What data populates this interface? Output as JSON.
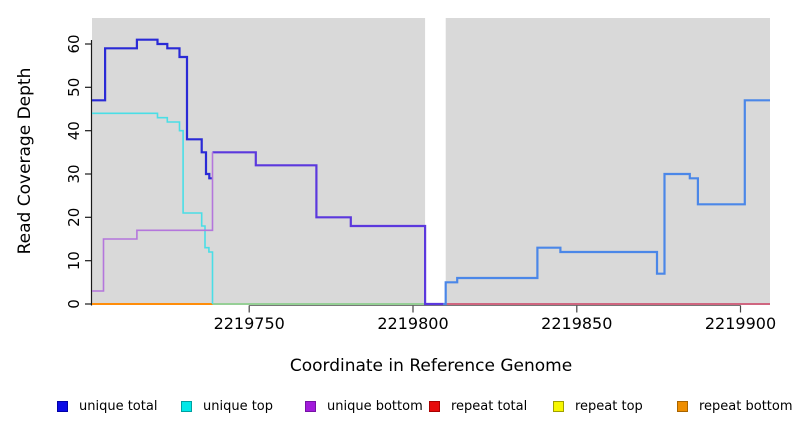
{
  "chart_data": {
    "type": "line",
    "title": "",
    "xlabel": "Coordinate in Reference Genome",
    "ylabel": "Read Coverage Depth",
    "xlim": [
      2219702,
      2219909
    ],
    "ylim": [
      0,
      66
    ],
    "x_ticks": [
      2219750,
      2219800,
      2219850,
      2219900
    ],
    "y_ticks": [
      0,
      10,
      20,
      30,
      40,
      50,
      60
    ],
    "grid": false,
    "plot_bg": "#D9D9D9",
    "gap_region": [
      2219803.7,
      2219810
    ],
    "legend_position": "bottom",
    "series": [
      {
        "key": "zero-blend-green",
        "name": "unique top / repeat top at zero",
        "color": "#80CC80",
        "width": 1.6,
        "steps": [
          [
            2219738.8,
            0
          ]
        ],
        "end": 2219803.7
      },
      {
        "key": "repeat-bottom-line",
        "name": "repeat bottom",
        "color": "#FF8D0A",
        "width": 2,
        "steps": [
          [
            2219702,
            0
          ]
        ],
        "end": 2219738.8
      },
      {
        "key": "repeat-total-line",
        "name": "repeat total",
        "color": "#CC4162",
        "width": 1.6,
        "steps": [
          [
            2219810,
            0
          ]
        ],
        "end": 2219909
      },
      {
        "key": "unique-total-mid",
        "name": "unique total = unique bottom (middle)",
        "color": "#5B38DD",
        "width": 2.2,
        "steps": [
          [
            2219738.8,
            35
          ],
          [
            2219752,
            32
          ],
          [
            2219770.5,
            20
          ],
          [
            2219781,
            18
          ],
          [
            2219803.7,
            0
          ]
        ],
        "end": 2219809.3
      },
      {
        "key": "unique-total-right",
        "name": "unique total (right)",
        "color": "#4B87E8",
        "width": 2.2,
        "steps": [
          [
            2219809.3,
            0
          ],
          [
            2219810,
            5
          ],
          [
            2219813.5,
            6
          ],
          [
            2219838,
            13
          ],
          [
            2219845,
            12
          ],
          [
            2219874.5,
            7
          ],
          [
            2219876.8,
            30
          ],
          [
            2219884.5,
            29
          ],
          [
            2219887,
            23
          ],
          [
            2219901.3,
            47
          ]
        ],
        "end": 2219909
      },
      {
        "key": "unique-total-left",
        "name": "unique total (left)",
        "color": "#2A2AD6",
        "width": 2.2,
        "steps": [
          [
            2219702,
            47
          ],
          [
            2219706,
            59
          ],
          [
            2219715.7,
            61
          ],
          [
            2219722,
            60
          ],
          [
            2219725,
            59
          ],
          [
            2219728.7,
            57
          ],
          [
            2219731,
            38
          ],
          [
            2219735.5,
            35
          ],
          [
            2219736.8,
            30
          ],
          [
            2219737.8,
            29
          ]
        ],
        "end": 2219738.8
      },
      {
        "key": "unique-top-line",
        "name": "unique top",
        "color": "#4ADEE6",
        "width": 1.6,
        "steps": [
          [
            2219702,
            44
          ],
          [
            2219722,
            43
          ],
          [
            2219725,
            42
          ],
          [
            2219728.7,
            40
          ],
          [
            2219729.8,
            21
          ],
          [
            2219735.5,
            18
          ],
          [
            2219736.5,
            13
          ],
          [
            2219737.7,
            12
          ],
          [
            2219738.8,
            0
          ]
        ],
        "end": 2219738.8
      },
      {
        "key": "unique-bottom-line",
        "name": "unique bottom",
        "color": "#B476DC",
        "width": 1.6,
        "steps": [
          [
            2219702,
            3
          ],
          [
            2219705.5,
            15
          ],
          [
            2219715.7,
            17
          ],
          [
            2219738.8,
            35
          ]
        ],
        "end": 2219738.8
      }
    ]
  },
  "legend": {
    "items": [
      {
        "key": "unique-total",
        "label": "unique total",
        "color": "#0B0BE6",
        "border": "#0000A8"
      },
      {
        "key": "unique-top",
        "label": "unique top",
        "color": "#00E8E8",
        "border": "#00A0A0"
      },
      {
        "key": "unique-bottom",
        "label": "unique bottom",
        "color": "#A21BDB",
        "border": "#7612A5"
      },
      {
        "key": "repeat-total",
        "label": "repeat total",
        "color": "#E60B0B",
        "border": "#A80000"
      },
      {
        "key": "repeat-top",
        "label": "repeat top",
        "color": "#F7F700",
        "border": "#A0A000"
      },
      {
        "key": "repeat-bottom",
        "label": "repeat bottom",
        "color": "#EE8E00",
        "border": "#A86400"
      }
    ]
  },
  "colors": {
    "plot_bg": "#D9D9D9",
    "gap": "#FFFFFF",
    "axis": "#1A1A1A",
    "tick": "#444444",
    "tick_label": "#000000"
  }
}
